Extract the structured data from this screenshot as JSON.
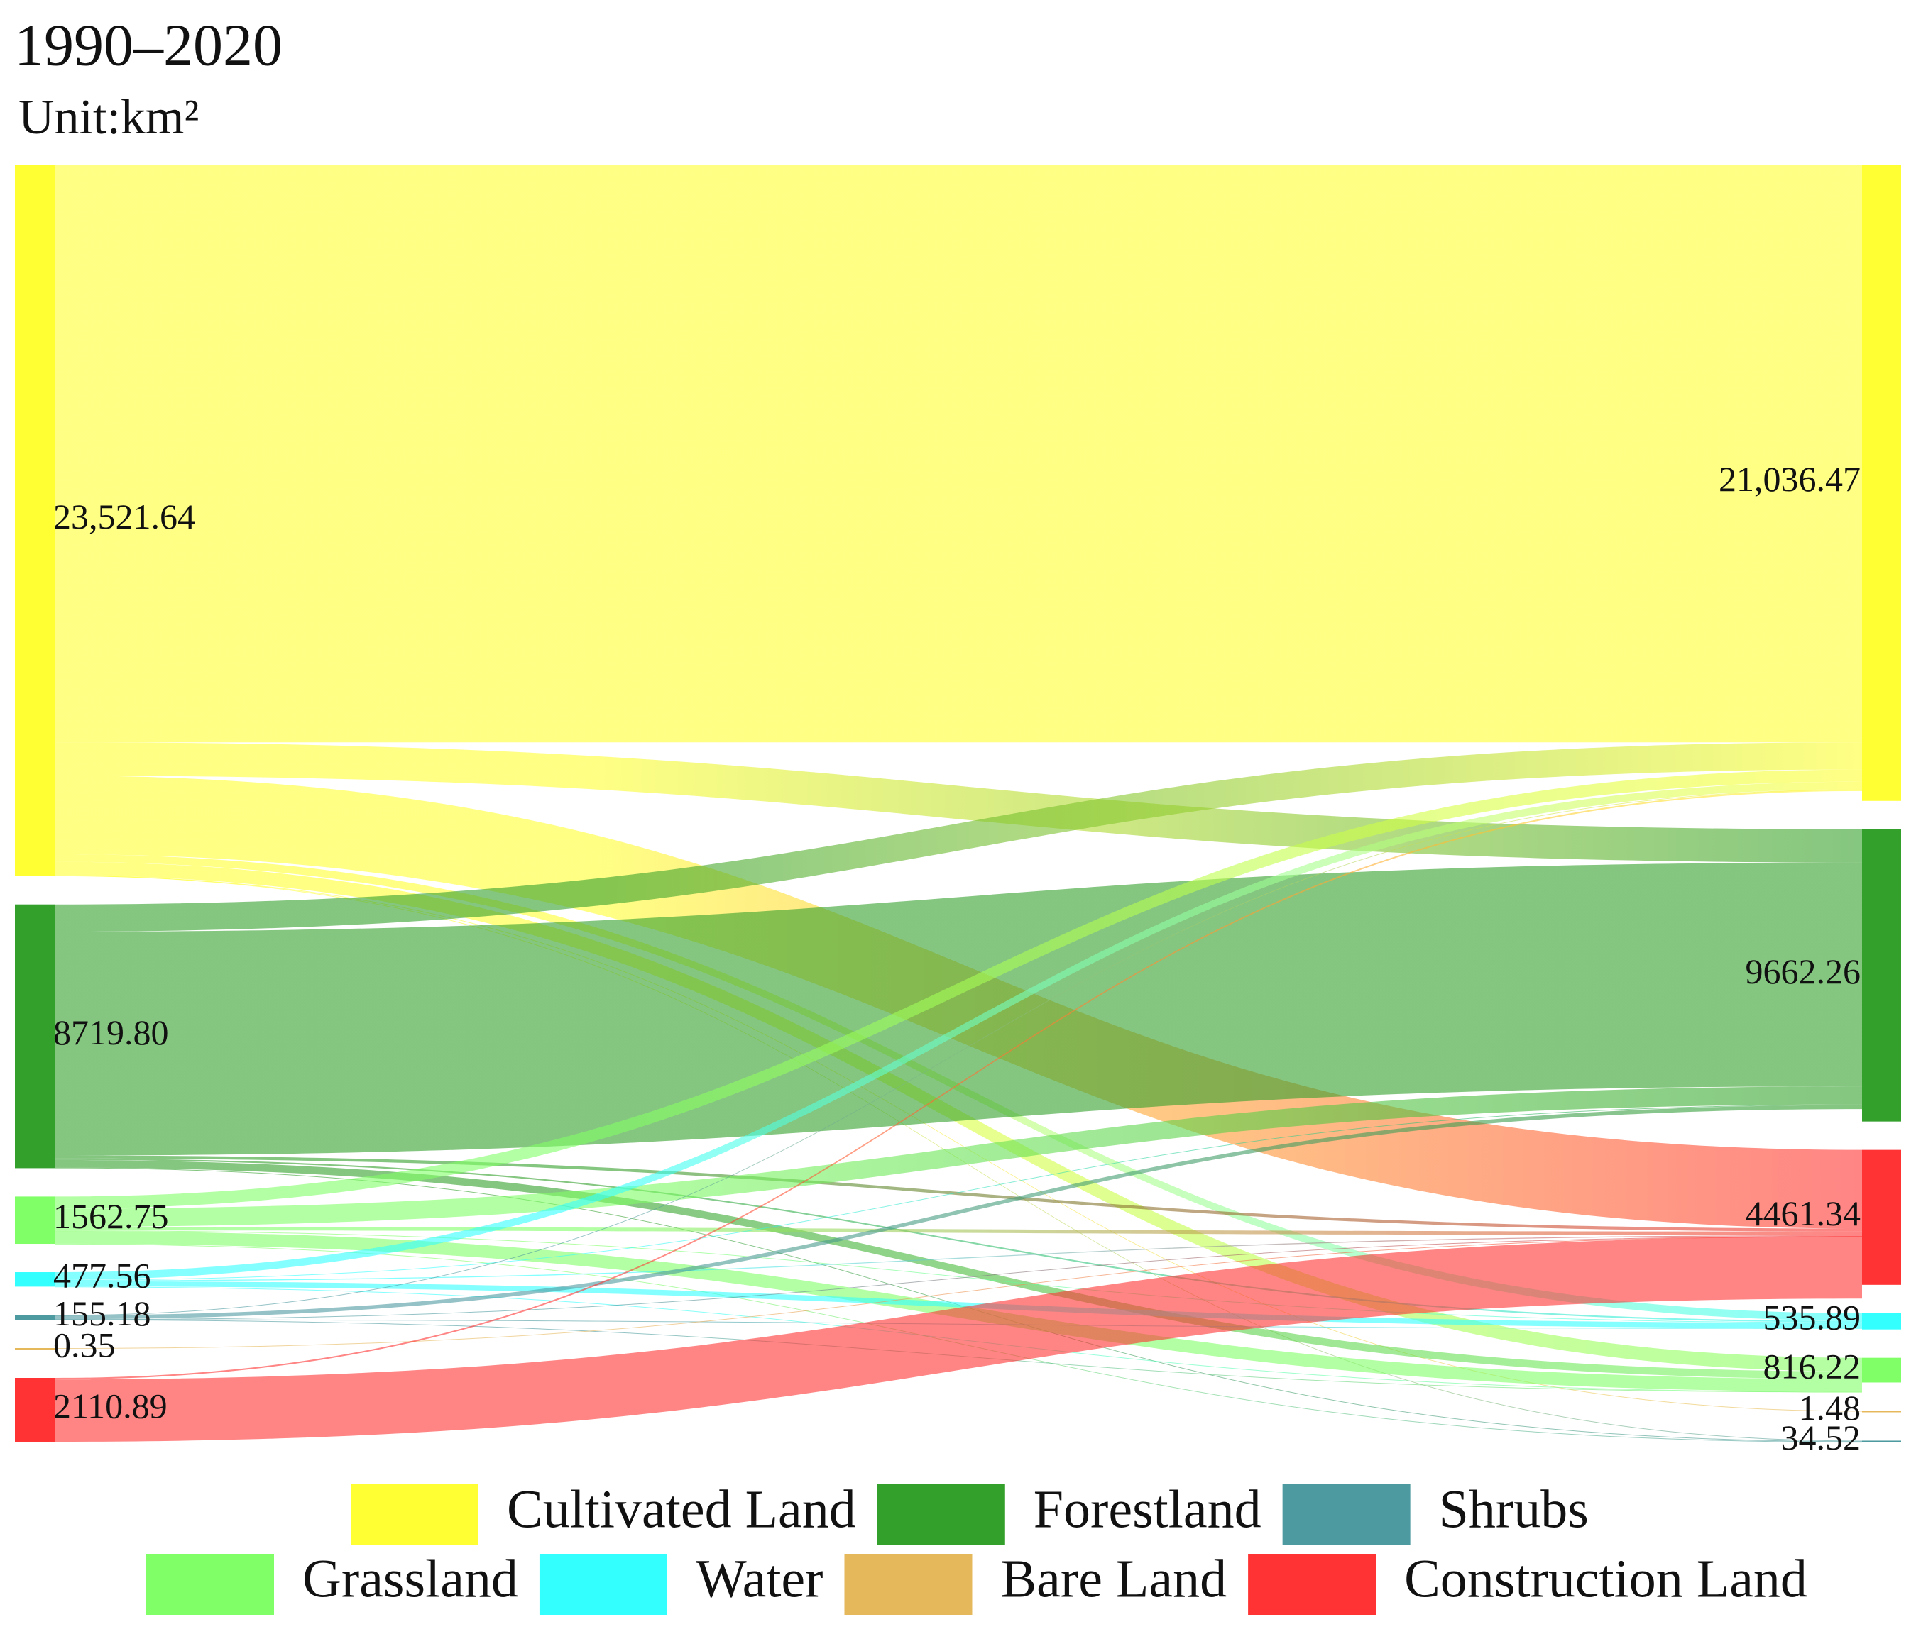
{
  "chart_data": {
    "type": "sankey",
    "title": "1990–2020",
    "subtitle": "Unit:km²",
    "series": [
      {
        "name": "Cultivated Land",
        "color": "#ffff33",
        "values": [
          23521.64,
          21036.47
        ],
        "value_labels": [
          "23,521.64",
          "21,036.47"
        ]
      },
      {
        "name": "Forestland",
        "color": "#33a02c",
        "values": [
          8719.8,
          9662.26
        ],
        "value_labels": [
          "8719.80",
          "9662.26"
        ]
      },
      {
        "name": "Shrubs",
        "color": "#4d9aa0",
        "values": [
          155.18,
          34.52
        ],
        "value_labels": [
          "155.18",
          "34.52"
        ]
      },
      {
        "name": "Grassland",
        "color": "#80ff66",
        "values": [
          1562.75,
          816.22
        ],
        "value_labels": [
          "1562.75",
          "816.22"
        ]
      },
      {
        "name": "Water",
        "color": "#33ffff",
        "values": [
          477.56,
          535.89
        ],
        "value_labels": [
          "477.56",
          "535.89"
        ]
      },
      {
        "name": "Bare Land",
        "color": "#e6b85c",
        "values": [
          0.35,
          1.48
        ],
        "value_labels": [
          "0.35",
          "1.48"
        ]
      },
      {
        "name": "Construction Land",
        "color": "#ff3333",
        "values": [
          2110.89,
          4461.34
        ],
        "value_labels": [
          "2110.89",
          "4461.34"
        ]
      }
    ],
    "links": [
      {
        "source": 0,
        "target": 0,
        "value": 19100
      },
      {
        "source": 0,
        "target": 1,
        "value": 1100
      },
      {
        "source": 0,
        "target": 6,
        "value": 2600
      },
      {
        "source": 0,
        "target": 4,
        "value": 250
      },
      {
        "source": 0,
        "target": 3,
        "value": 450
      },
      {
        "source": 0,
        "target": 5,
        "value": 1.64
      },
      {
        "source": 0,
        "target": 2,
        "value": 20
      },
      {
        "source": 1,
        "target": 0,
        "value": 900
      },
      {
        "source": 1,
        "target": 1,
        "value": 7400
      },
      {
        "source": 1,
        "target": 6,
        "value": 100
      },
      {
        "source": 1,
        "target": 4,
        "value": 50
      },
      {
        "source": 1,
        "target": 3,
        "value": 250
      },
      {
        "source": 1,
        "target": 2,
        "value": 19.8
      },
      {
        "source": 3,
        "target": 0,
        "value": 400
      },
      {
        "source": 3,
        "target": 1,
        "value": 600
      },
      {
        "source": 3,
        "target": 6,
        "value": 120
      },
      {
        "source": 3,
        "target": 4,
        "value": 20
      },
      {
        "source": 3,
        "target": 3,
        "value": 420
      },
      {
        "source": 3,
        "target": 2,
        "value": 2.75
      },
      {
        "source": 4,
        "target": 0,
        "value": 250
      },
      {
        "source": 4,
        "target": 1,
        "value": 20
      },
      {
        "source": 4,
        "target": 6,
        "value": 30
      },
      {
        "source": 4,
        "target": 4,
        "value": 175
      },
      {
        "source": 4,
        "target": 3,
        "value": 2.56
      },
      {
        "source": 2,
        "target": 0,
        "value": 10
      },
      {
        "source": 2,
        "target": 1,
        "value": 130
      },
      {
        "source": 2,
        "target": 6,
        "value": 5
      },
      {
        "source": 2,
        "target": 4,
        "value": 5
      },
      {
        "source": 2,
        "target": 3,
        "value": 5.18
      },
      {
        "source": 5,
        "target": 6,
        "value": 0.35
      },
      {
        "source": 6,
        "target": 0,
        "value": 50
      },
      {
        "source": 6,
        "target": 6,
        "value": 2060.89
      }
    ]
  }
}
